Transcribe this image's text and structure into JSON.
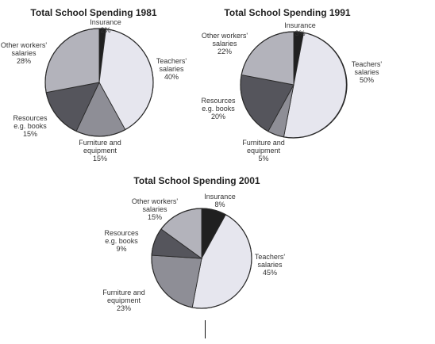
{
  "colors": {
    "insurance": "#202020",
    "teachers": "#e6e6ee",
    "furniture": "#8e8e96",
    "resources": "#55555c",
    "other": "#b3b3bb",
    "stroke": "#2a2a2a"
  },
  "chart_data": [
    {
      "type": "pie",
      "title": "Total School Spending 1981",
      "slices": [
        {
          "key": "insurance",
          "label": [
            "Insurance",
            "2%"
          ],
          "value": 2
        },
        {
          "key": "teachers",
          "label": [
            "Teachers'",
            "salaries",
            "40%"
          ],
          "value": 40
        },
        {
          "key": "furniture",
          "label": [
            "Furniture and",
            "equipment",
            "15%"
          ],
          "value": 15
        },
        {
          "key": "resources",
          "label": [
            "Resources",
            "e.g. books",
            "15%"
          ],
          "value": 15
        },
        {
          "key": "other",
          "label": [
            "Other workers'",
            "salaries",
            "28%"
          ],
          "value": 28
        }
      ]
    },
    {
      "type": "pie",
      "title": "Total School Spending 1991",
      "slices": [
        {
          "key": "insurance",
          "label": [
            "Insurance",
            "3%"
          ],
          "value": 3
        },
        {
          "key": "teachers",
          "label": [
            "Teachers'",
            "salaries",
            "50%"
          ],
          "value": 50
        },
        {
          "key": "furniture",
          "label": [
            "Furniture and",
            "equipment",
            "5%"
          ],
          "value": 5
        },
        {
          "key": "resources",
          "label": [
            "Resources",
            "e.g. books",
            "20%"
          ],
          "value": 20
        },
        {
          "key": "other",
          "label": [
            "Other workers'",
            "salaries",
            "22%"
          ],
          "value": 22
        }
      ]
    },
    {
      "type": "pie",
      "title": "Total School Spending 2001",
      "slices": [
        {
          "key": "insurance",
          "label": [
            "Insurance",
            "8%"
          ],
          "value": 8
        },
        {
          "key": "teachers",
          "label": [
            "Teachers'",
            "salaries",
            "45%"
          ],
          "value": 45
        },
        {
          "key": "furniture",
          "label": [
            "Furniture and",
            "equipment",
            "23%"
          ],
          "value": 23
        },
        {
          "key": "resources",
          "label": [
            "Resources",
            "e.g. books",
            "9%"
          ],
          "value": 9
        },
        {
          "key": "other",
          "label": [
            "Other workers'",
            "salaries",
            "15%"
          ],
          "value": 15
        }
      ]
    }
  ]
}
